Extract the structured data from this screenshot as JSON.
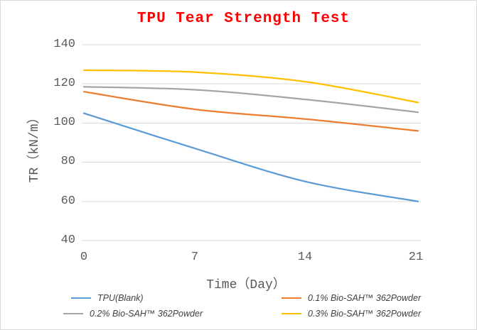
{
  "chart_data": {
    "type": "line",
    "title": "TPU Tear Strength Test",
    "xlabel": "Time（Day）",
    "ylabel": "TR（kN/m）",
    "x": [
      0,
      7,
      14,
      21
    ],
    "x_ticks": [
      "0",
      "7",
      "14",
      "21"
    ],
    "y_ticks": [
      "140",
      "120",
      "100",
      "80",
      "60",
      "40"
    ],
    "y_tick_values": [
      140,
      120,
      100,
      80,
      60,
      40
    ],
    "xlim": [
      0,
      21
    ],
    "ylim": [
      40,
      140
    ],
    "grid": "horizontal",
    "smooth": true,
    "legend_position": "bottom",
    "series": [
      {
        "name": "TPU(Blank)",
        "color": "#5B9BD5",
        "values": [
          105,
          87,
          70,
          60
        ]
      },
      {
        "name": "0.1% Bio-SAH™ 362Powder",
        "color": "#ED7D31",
        "values": [
          116,
          107,
          102,
          96
        ]
      },
      {
        "name": "0.2% Bio-SAH™ 362Powder",
        "color": "#A5A5A5",
        "values": [
          118.5,
          117,
          112,
          105.5
        ]
      },
      {
        "name": "0.3% Bio-SAH™ 362Powder",
        "color": "#FFC000",
        "values": [
          127,
          126,
          121,
          110.5
        ]
      }
    ]
  },
  "colors": {
    "title": "#FF0000",
    "axis_text": "#595959",
    "legend_text": "#404040",
    "gridline": "#D9D9D9",
    "chart_border": "#D9D9D9",
    "background": "#FFFFFF"
  }
}
